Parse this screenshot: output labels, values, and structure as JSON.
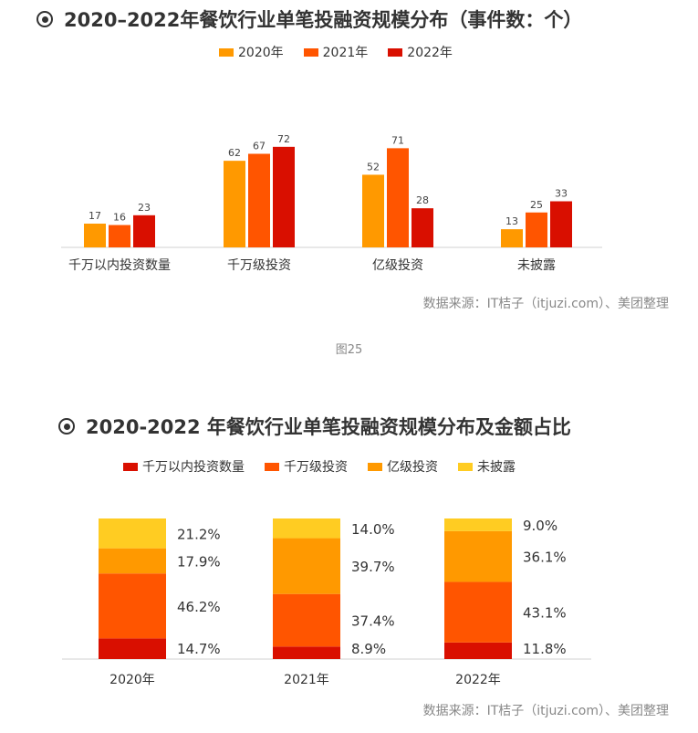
{
  "figure1": {
    "title": "2020–2022年餐饮行业单笔投融资规模分布（事件数：个）",
    "source": "数据来源：IT桔子（itjuzi.com）、美团整理",
    "caption": "图25"
  },
  "figure2": {
    "title": "2020-2022 年餐饮行业单笔投融资规模分布及金额占比",
    "source": "数据来源：IT桔子（itjuzi.com）、美团整理"
  },
  "chart_data": [
    {
      "type": "bar",
      "title": "2020–2022年餐饮行业单笔投融资规模分布（事件数：个）",
      "categories": [
        "千万以内投资数量",
        "千万级投资",
        "亿级投资",
        "未披露"
      ],
      "series": [
        {
          "name": "2020年",
          "values": [
            17,
            62,
            52,
            13
          ],
          "color": "#FF9900"
        },
        {
          "name": "2021年",
          "values": [
            16,
            67,
            71,
            25
          ],
          "color": "#FF5500"
        },
        {
          "name": "2022年",
          "values": [
            23,
            72,
            28,
            33
          ],
          "color": "#D90F00"
        }
      ],
      "ylim": [
        0,
        80
      ],
      "grid": false,
      "legend": "top-center"
    },
    {
      "type": "bar",
      "stacked": true,
      "title": "2020-2022 年餐饮行业单笔投融资规模分布及金额占比",
      "categories": [
        "2020年",
        "2021年",
        "2022年"
      ],
      "series": [
        {
          "name": "千万以内投资数量",
          "values": [
            14.7,
            8.9,
            11.8
          ],
          "labels": [
            "14.7%",
            "8.9%",
            "11.8%"
          ],
          "color": "#D90F00"
        },
        {
          "name": "千万级投资",
          "values": [
            46.2,
            37.4,
            43.1
          ],
          "labels": [
            "46.2%",
            "37.4%",
            "43.1%"
          ],
          "color": "#FF5500"
        },
        {
          "name": "亿级投资",
          "values": [
            17.9,
            39.7,
            36.1
          ],
          "labels": [
            "17.9%",
            "39.7%",
            "36.1%"
          ],
          "color": "#FF9900"
        },
        {
          "name": "未披露",
          "values": [
            21.2,
            14.0,
            9.0
          ],
          "labels": [
            "21.2%",
            "14.0%",
            "9.0%"
          ],
          "color": "#FFCC22"
        }
      ],
      "ylim": [
        0,
        100
      ],
      "grid": false,
      "legend": "top-center"
    }
  ]
}
